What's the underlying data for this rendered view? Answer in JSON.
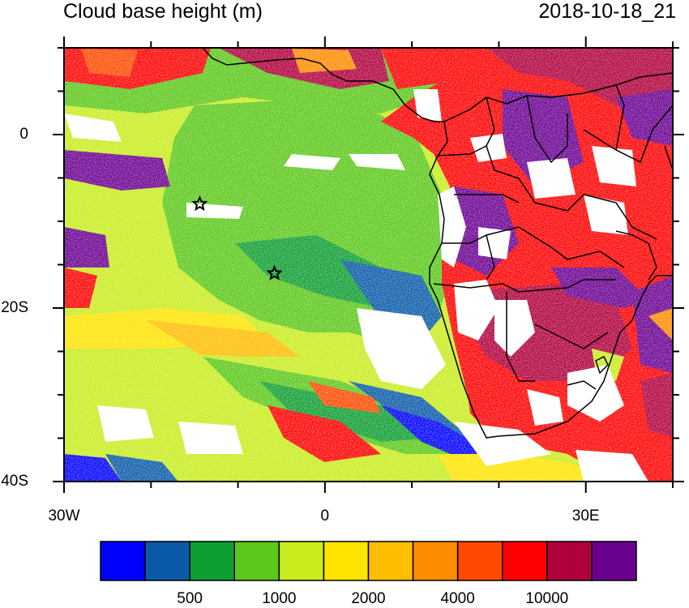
{
  "title": "Cloud base height (m)",
  "timestamp": "2018-10-18_21",
  "map": {
    "lat_labels": [
      {
        "text": "0",
        "lat": 0
      },
      {
        "text": "20S",
        "lat": -20
      },
      {
        "text": "40S",
        "lat": -40
      }
    ],
    "lon_labels": [
      {
        "text": "30W",
        "lon": -30
      },
      {
        "text": "0",
        "lon": 0
      },
      {
        "text": "30E",
        "lon": 30
      }
    ],
    "extent": {
      "lon": [
        -30,
        40
      ],
      "lat": [
        -40,
        10
      ]
    },
    "markers": [
      {
        "symbol": "star",
        "lon": -14.4,
        "lat": -8
      },
      {
        "symbol": "star",
        "lon": -5.8,
        "lat": -16
      }
    ]
  },
  "colorbar": {
    "colors": [
      "#0000ff",
      "#0a5aa8",
      "#0e9e32",
      "#5cc81a",
      "#c8ec1e",
      "#ffe400",
      "#ffbe00",
      "#ff8c00",
      "#ff4a00",
      "#ff0000",
      "#b0003c",
      "#6a0090"
    ],
    "labels": [
      "500",
      "1000",
      "2000",
      "4000",
      "10000"
    ]
  }
}
